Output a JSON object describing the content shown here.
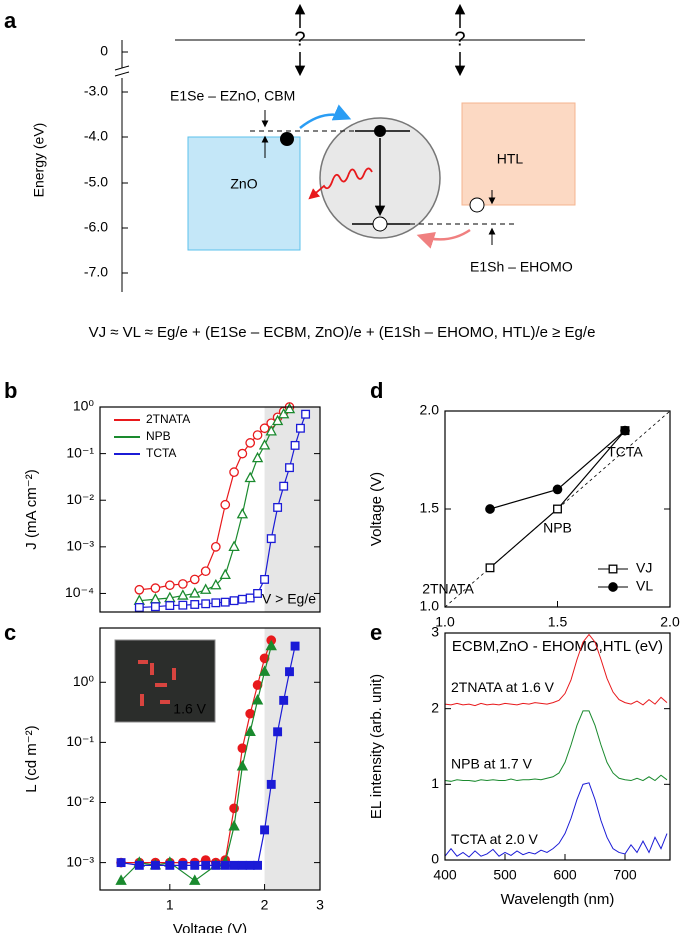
{
  "diagram": {
    "label": "a",
    "axis_label": "Energy (eV)",
    "ticks": [
      "0",
      "-3.0",
      "-4.0",
      "-5.0",
      "-6.0",
      "-7.0"
    ],
    "question_marks": [
      "?",
      "?"
    ],
    "labels": {
      "electron_offset": "E1Se – EZnO, CBM",
      "zno": "ZnO",
      "htl": "HTL",
      "hole_offset": "E1Sh – EHOMO"
    },
    "formula": "VJ ≈ VL ≈ Eg/e + (E1Se – ECBM, ZnO)/e + (E1Sh – EHOMO, HTL)/e ≥ Eg/e"
  },
  "chart_data": [
    {
      "type": "line",
      "label": "b",
      "ylabel": "J (mA cm⁻²)",
      "xlog": true,
      "ylog": true,
      "xlim": [
        0.6,
        3
      ],
      "ylim": [
        4e-05,
        1
      ],
      "yticks": [
        {
          "value": 0.0001,
          "label": "10⁻⁴"
        },
        {
          "value": 0.001,
          "label": "10⁻³"
        },
        {
          "value": 0.01,
          "label": "10⁻²"
        },
        {
          "value": 0.1,
          "label": "10⁻¹"
        },
        {
          "value": 1,
          "label": "10⁰"
        }
      ],
      "shaded_region": [
        2,
        3
      ],
      "annotation": "V > Eg/e",
      "legend": "upper left",
      "series": [
        {
          "name": "2TNATA",
          "color": "#e8191c",
          "marker": "circle",
          "filled": false,
          "x": [
            0.8,
            0.9,
            1.0,
            1.1,
            1.2,
            1.3,
            1.4,
            1.5,
            1.6,
            1.7,
            1.8,
            1.9,
            2.0,
            2.1,
            2.2,
            2.3,
            2.4
          ],
          "values": [
            0.00012,
            0.00013,
            0.00015,
            0.00016,
            0.0002,
            0.0003,
            0.001,
            0.008,
            0.04,
            0.1,
            0.17,
            0.25,
            0.35,
            0.45,
            0.6,
            0.8,
            1
          ]
        },
        {
          "name": "NPB",
          "color": "#1a8a2e",
          "marker": "triangle",
          "filled": false,
          "x": [
            0.8,
            0.9,
            1.0,
            1.1,
            1.2,
            1.3,
            1.4,
            1.5,
            1.6,
            1.7,
            1.8,
            1.9,
            2.0,
            2.1,
            2.2,
            2.3,
            2.4
          ],
          "values": [
            7e-05,
            7.5e-05,
            8e-05,
            9e-05,
            0.0001,
            0.00012,
            0.00015,
            0.00025,
            0.001,
            0.005,
            0.03,
            0.08,
            0.15,
            0.3,
            0.5,
            0.7,
            0.9
          ]
        },
        {
          "name": "TCTA",
          "color": "#1b1bd6",
          "marker": "square",
          "filled": false,
          "x": [
            0.8,
            0.9,
            1.0,
            1.1,
            1.2,
            1.3,
            1.4,
            1.5,
            1.6,
            1.7,
            1.8,
            1.9,
            2.0,
            2.1,
            2.2,
            2.3,
            2.4,
            2.5,
            2.6,
            2.7
          ],
          "values": [
            5e-05,
            5.2e-05,
            5.5e-05,
            5.6e-05,
            5.8e-05,
            6e-05,
            6.3e-05,
            6.5e-05,
            7e-05,
            7.5e-05,
            8e-05,
            0.0001,
            0.0002,
            0.0015,
            0.007,
            0.02,
            0.05,
            0.15,
            0.35,
            0.7
          ]
        }
      ]
    },
    {
      "type": "line",
      "label": "c",
      "ylabel": "L (cd m⁻²)",
      "xlabel": "Voltage (V)",
      "xlog": true,
      "ylog": true,
      "xlim": [
        0.6,
        3
      ],
      "ylim": [
        0.00035,
        8
      ],
      "xticks": [
        1,
        2,
        3
      ],
      "yticks": [
        {
          "value": 0.001,
          "label": "10⁻³"
        },
        {
          "value": 0.01,
          "label": "10⁻²"
        },
        {
          "value": 0.1,
          "label": "10⁻¹"
        },
        {
          "value": 1,
          "label": "10⁰"
        }
      ],
      "shaded_region": [
        2,
        3
      ],
      "inset_label": "1.6 V",
      "series": [
        {
          "name": "2TNATA",
          "color": "#e8191c",
          "marker": "circle",
          "filled": true,
          "x": [
            0.7,
            0.8,
            0.9,
            1.0,
            1.1,
            1.2,
            1.3,
            1.4,
            1.5,
            1.6,
            1.7,
            1.8,
            1.9,
            2.0,
            2.1
          ],
          "values": [
            0.001,
            0.001,
            0.001,
            0.001,
            0.001,
            0.001,
            0.0011,
            0.001,
            0.0011,
            0.008,
            0.08,
            0.3,
            0.9,
            2.5,
            5
          ]
        },
        {
          "name": "NPB",
          "color": "#1a8a2e",
          "marker": "triangle",
          "filled": true,
          "x": [
            0.7,
            0.8,
            0.9,
            1.0,
            1.2,
            1.4,
            1.5,
            1.6,
            1.7,
            1.8,
            1.9,
            2.0,
            2.1
          ],
          "values": [
            0.0005,
            0.001,
            0.0009,
            0.001,
            0.0005,
            0.0009,
            0.001,
            0.004,
            0.04,
            0.15,
            0.5,
            1.5,
            4
          ]
        },
        {
          "name": "TCTA",
          "color": "#1b1bd6",
          "marker": "square",
          "filled": true,
          "x": [
            0.7,
            0.8,
            0.9,
            1.0,
            1.1,
            1.2,
            1.3,
            1.4,
            1.5,
            1.6,
            1.7,
            1.8,
            1.9,
            2.0,
            2.1,
            2.2,
            2.3,
            2.4,
            2.5
          ],
          "values": [
            0.001,
            0.0009,
            0.0009,
            0.0009,
            0.0009,
            0.0009,
            0.0009,
            0.0009,
            0.0009,
            0.0009,
            0.0009,
            0.0009,
            0.0009,
            0.0035,
            0.02,
            0.15,
            0.5,
            1.5,
            4
          ]
        }
      ]
    },
    {
      "type": "scatter",
      "label": "d",
      "ylabel": "Voltage (V)",
      "xlabel": "ECBM,ZnO - EHOMO,HTL (eV)",
      "xlim": [
        1.0,
        2.0
      ],
      "ylim": [
        1.0,
        2.0
      ],
      "xticks": [
        {
          "value": 1,
          "label": "1.0"
        },
        1.5,
        {
          "value": 2,
          "label": "2.0"
        }
      ],
      "yticks": [
        {
          "value": 1,
          "label": "1.0"
        },
        1.5,
        {
          "value": 2,
          "label": "2.0"
        }
      ],
      "reference_line": true,
      "legend": "lower right",
      "point_labels": [
        {
          "text": "2TNATA",
          "color": "#e8191c"
        },
        {
          "text": "NPB",
          "color": "#1a8a2e"
        },
        {
          "text": "TCTA",
          "color": "#1b1bd6"
        }
      ],
      "series": [
        {
          "name": "VJ",
          "color": "#000000",
          "marker": "square",
          "filled": false,
          "x": [
            1.2,
            1.5,
            1.8
          ],
          "values": [
            1.2,
            1.5,
            1.9
          ]
        },
        {
          "name": "VL",
          "color": "#000000",
          "marker": "circle",
          "filled": true,
          "x": [
            1.2,
            1.5,
            1.8
          ],
          "values": [
            1.5,
            1.6,
            1.9
          ]
        }
      ]
    },
    {
      "type": "line",
      "label": "e",
      "ylabel": "EL intensity (arb. unit)",
      "xlabel": "Wavelength (nm)",
      "xlim": [
        400,
        775
      ],
      "ylim": [
        0,
        3
      ],
      "xticks": [
        400,
        500,
        600,
        700
      ],
      "yticks": [
        0,
        1,
        2,
        3
      ],
      "x": [
        400,
        410,
        420,
        430,
        440,
        450,
        460,
        470,
        480,
        490,
        500,
        510,
        520,
        530,
        540,
        550,
        560,
        570,
        580,
        590,
        600,
        610,
        620,
        630,
        640,
        650,
        660,
        670,
        680,
        690,
        700,
        710,
        720,
        730,
        740,
        750,
        760,
        770
      ],
      "series": [
        {
          "name": "2TNATA at 1.6 V",
          "color": "#e8191c",
          "values": [
            2.06,
            2.05,
            2.07,
            2.05,
            2.06,
            2.04,
            2.07,
            2.05,
            2.06,
            2.05,
            2.07,
            2.06,
            2.05,
            2.07,
            2.06,
            2.08,
            2.07,
            2.06,
            2.08,
            2.11,
            2.2,
            2.38,
            2.65,
            2.88,
            2.98,
            2.88,
            2.65,
            2.4,
            2.22,
            2.12,
            2.08,
            2.06,
            2.1,
            2.05,
            2.12,
            2.06,
            2.15,
            2.08
          ]
        },
        {
          "name": "NPB at 1.7 V",
          "color": "#1a8a2e",
          "values": [
            1.05,
            1.04,
            1.06,
            1.05,
            1.05,
            1.04,
            1.06,
            1.05,
            1.06,
            1.05,
            1.05,
            1.07,
            1.05,
            1.06,
            1.06,
            1.07,
            1.06,
            1.08,
            1.1,
            1.15,
            1.29,
            1.52,
            1.78,
            1.97,
            1.97,
            1.78,
            1.52,
            1.29,
            1.15,
            1.08,
            1.06,
            1.05,
            1.08,
            1.05,
            1.1,
            1.05,
            1.12,
            1.06
          ]
        },
        {
          "name": "TCTA at 2.0 V",
          "color": "#1b1bd6",
          "values": [
            0.05,
            0.15,
            0.05,
            0.1,
            0.04,
            0.12,
            0.05,
            0.08,
            0.14,
            0.05,
            0.1,
            0.06,
            0.12,
            0.07,
            0.1,
            0.08,
            0.13,
            0.1,
            0.15,
            0.22,
            0.35,
            0.55,
            0.8,
            1.0,
            1.02,
            0.8,
            0.52,
            0.3,
            0.15,
            0.1,
            0.08,
            0.2,
            0.1,
            0.25,
            0.1,
            0.3,
            0.15,
            0.35
          ]
        }
      ]
    }
  ]
}
